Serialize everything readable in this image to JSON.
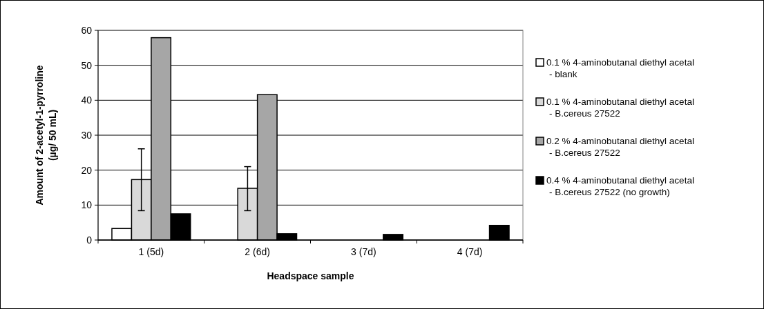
{
  "chart_data": {
    "type": "bar",
    "xlabel": "Headspace sample",
    "ylabel": "Amount of 2-acetyl-1-pyrroline (µg/ 50 mL)",
    "categories": [
      "1 (5d)",
      "2 (6d)",
      "3 (7d)",
      "4 (7d)"
    ],
    "series": [
      {
        "name": "0.1 % 4-aminobutanal diethyl acetal - blank",
        "color": "#ffffff",
        "values": [
          3.3,
          null,
          null,
          null
        ]
      },
      {
        "name": "0.1 % 4-aminobutanal diethyl acetal - B.cereus 27522",
        "color": "#d9d9d9",
        "values": [
          17.3,
          14.8,
          null,
          null
        ],
        "errors": [
          [
            8.4,
            26.1
          ],
          [
            8.4,
            21
          ],
          null,
          null
        ]
      },
      {
        "name": "0.2 % 4-aminobutanal diethyl acetal - B.cereus 27522",
        "color": "#a6a6a6",
        "values": [
          57.9,
          41.6,
          null,
          null
        ]
      },
      {
        "name": "0.4 % 4-aminobutanal diethyl acetal - B.cereus 27522 (no growth)",
        "color": "#000000",
        "values": [
          7.5,
          1.8,
          1.6,
          4.2
        ]
      }
    ],
    "ylim": [
      0,
      60
    ],
    "yticks": [
      0,
      10,
      20,
      30,
      40,
      50,
      60
    ],
    "grid": "y",
    "legend": "right"
  }
}
